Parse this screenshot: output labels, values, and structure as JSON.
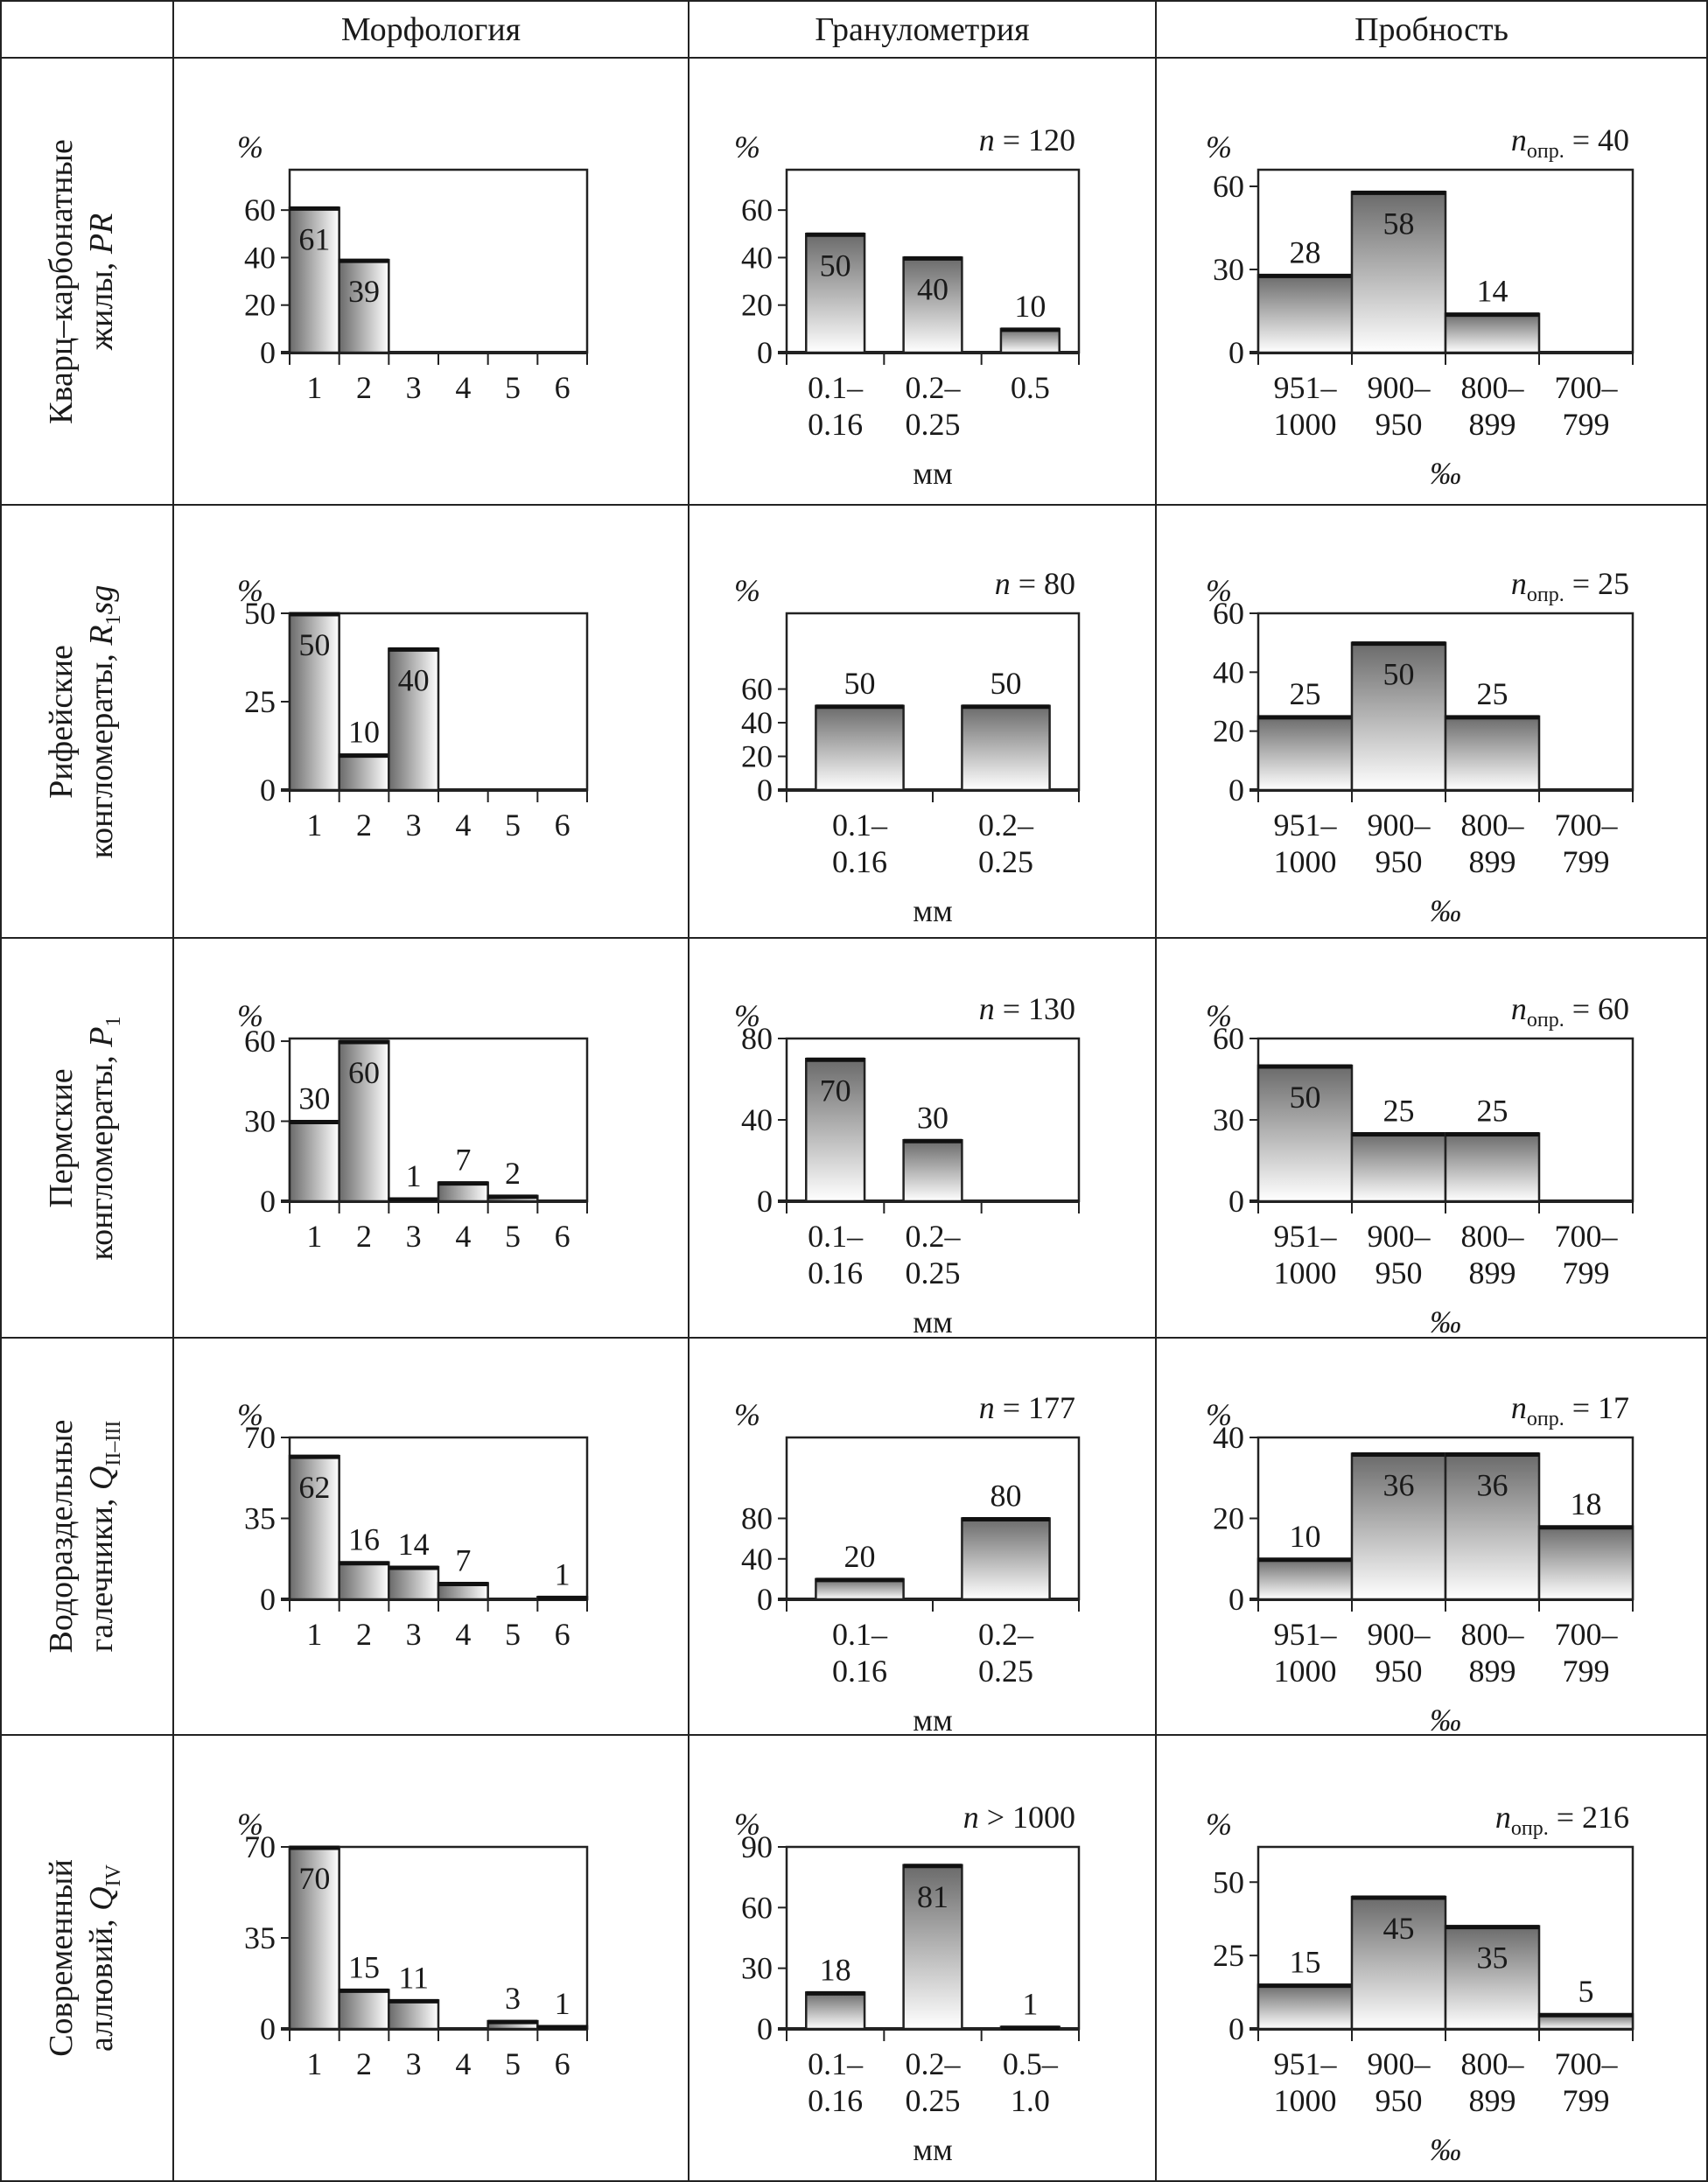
{
  "headers": [
    "Морфология",
    "Гранулометрия",
    "Пробность"
  ],
  "rows": [
    {
      "line1": "Кварц–карбонатные",
      "line2": "жилы, ",
      "symbol": "PR",
      "sub": ""
    },
    {
      "line1": "Рифейские",
      "line2": "конгломераты, ",
      "symbol": "R",
      "sub": "1",
      "suffix": "sg"
    },
    {
      "line1": "Пермские",
      "line2": "конгломераты, ",
      "symbol": "P",
      "sub": "1"
    },
    {
      "line1": "Водораздельные",
      "line2": "галечники, ",
      "symbol": "Q",
      "sub": "II–III"
    },
    {
      "line1": "Современный",
      "line2": "аллювий, ",
      "symbol": "Q",
      "sub": "IV"
    }
  ],
  "bar_gradient": [
    "#6a6a6a",
    "#ffffff"
  ],
  "chart_data": [
    {
      "type": "bar",
      "row": 0,
      "column": "Морфология",
      "categories": [
        [
          "1"
        ],
        [
          "2"
        ],
        [
          "3"
        ],
        [
          "4"
        ],
        [
          "5"
        ],
        [
          "6"
        ]
      ],
      "values": [
        61,
        39,
        0,
        0,
        0,
        0
      ],
      "labels": [
        "61",
        "39",
        "",
        "",
        "",
        ""
      ],
      "yticks": [
        0,
        20,
        40,
        60
      ],
      "ylim": [
        0,
        77
      ],
      "ylabel": "%",
      "xlabel": "",
      "n_symbol": "",
      "n_sub": "",
      "n_text": ""
    },
    {
      "type": "bar",
      "row": 0,
      "column": "Гранулометрия",
      "categories": [
        [
          "0.1–",
          "0.16"
        ],
        [
          "0.2–",
          "0.25"
        ],
        [
          "0.5"
        ]
      ],
      "values": [
        50,
        40,
        10
      ],
      "labels": [
        "50",
        "40",
        "10"
      ],
      "yticks": [
        0,
        20,
        40,
        60
      ],
      "ylim": [
        0,
        77
      ],
      "ylabel": "%",
      "xlabel": "мм",
      "n_symbol": "n",
      "n_sub": "",
      "n_text": "= 120"
    },
    {
      "type": "bar",
      "row": 0,
      "column": "Пробность",
      "categories": [
        [
          "951–",
          "1000"
        ],
        [
          "900–",
          "950"
        ],
        [
          "800–",
          "899"
        ],
        [
          "700–",
          "799"
        ]
      ],
      "values": [
        28,
        58,
        14,
        0
      ],
      "labels": [
        "28",
        "58",
        "14",
        ""
      ],
      "yticks": [
        0,
        30,
        60
      ],
      "ylim": [
        0,
        66
      ],
      "ylabel": "%",
      "xlabel": "‰",
      "n_symbol": "n",
      "n_sub": "опр.",
      "n_text": "= 40"
    },
    {
      "type": "bar",
      "row": 1,
      "column": "Морфология",
      "categories": [
        [
          "1"
        ],
        [
          "2"
        ],
        [
          "3"
        ],
        [
          "4"
        ],
        [
          "5"
        ],
        [
          "6"
        ]
      ],
      "values": [
        50,
        10,
        40,
        0,
        0,
        0
      ],
      "labels": [
        "50",
        "10",
        "40",
        "",
        "",
        ""
      ],
      "yticks": [
        0,
        25,
        50
      ],
      "ylim": [
        0,
        50
      ],
      "ylabel": "%",
      "xlabel": "",
      "n_symbol": "",
      "n_sub": "",
      "n_text": ""
    },
    {
      "type": "bar",
      "row": 1,
      "column": "Гранулометрия",
      "categories": [
        [
          "0.1–",
          "0.16"
        ],
        [
          "0.2–",
          "0.25"
        ]
      ],
      "values": [
        50,
        50
      ],
      "labels": [
        "50",
        "50"
      ],
      "yticks": [
        0,
        20,
        40,
        60
      ],
      "ylim": [
        0,
        105
      ],
      "ylabel": "%",
      "xlabel": "мм",
      "n_symbol": "n",
      "n_sub": "",
      "n_text": "= 80"
    },
    {
      "type": "bar",
      "row": 1,
      "column": "Пробность",
      "categories": [
        [
          "951–",
          "1000"
        ],
        [
          "900–",
          "950"
        ],
        [
          "800–",
          "899"
        ],
        [
          "700–",
          "799"
        ]
      ],
      "values": [
        25,
        50,
        25,
        0
      ],
      "labels": [
        "25",
        "50",
        "25",
        ""
      ],
      "yticks": [
        0,
        20,
        40,
        60
      ],
      "ylim": [
        0,
        60
      ],
      "ylabel": "%",
      "xlabel": "‰",
      "n_symbol": "n",
      "n_sub": "опр.",
      "n_text": "= 25"
    },
    {
      "type": "bar",
      "row": 2,
      "column": "Морфология",
      "categories": [
        [
          "1"
        ],
        [
          "2"
        ],
        [
          "3"
        ],
        [
          "4"
        ],
        [
          "5"
        ],
        [
          "6"
        ]
      ],
      "values": [
        30,
        60,
        1,
        7,
        2,
        0
      ],
      "labels": [
        "30",
        "60",
        "1",
        "7",
        "2",
        ""
      ],
      "yticks": [
        0,
        30,
        60
      ],
      "ylim": [
        0,
        61
      ],
      "ylabel": "%",
      "xlabel": "",
      "n_symbol": "",
      "n_sub": "",
      "n_text": ""
    },
    {
      "type": "bar",
      "row": 2,
      "column": "Гранулометрия",
      "categories": [
        [
          "0.1–",
          "0.16"
        ],
        [
          "0.2–",
          "0.25"
        ],
        [
          ""
        ]
      ],
      "values": [
        70,
        30,
        0
      ],
      "labels": [
        "70",
        "30",
        ""
      ],
      "yticks": [
        0,
        40,
        80
      ],
      "ylim": [
        0,
        80
      ],
      "ylabel": "%",
      "xlabel": "мм",
      "n_symbol": "n",
      "n_sub": "",
      "n_text": "= 130"
    },
    {
      "type": "bar",
      "row": 2,
      "column": "Пробность",
      "categories": [
        [
          "951–",
          "1000"
        ],
        [
          "900–",
          "950"
        ],
        [
          "800–",
          "899"
        ],
        [
          "700–",
          "799"
        ]
      ],
      "values": [
        50,
        25,
        25,
        0
      ],
      "labels": [
        "50",
        "25",
        "25",
        ""
      ],
      "yticks": [
        0,
        30,
        60
      ],
      "ylim": [
        0,
        60
      ],
      "ylabel": "%",
      "xlabel": "‰",
      "n_symbol": "n",
      "n_sub": "опр.",
      "n_text": "= 60"
    },
    {
      "type": "bar",
      "row": 3,
      "column": "Морфология",
      "categories": [
        [
          "1"
        ],
        [
          "2"
        ],
        [
          "3"
        ],
        [
          "4"
        ],
        [
          "5"
        ],
        [
          "6"
        ]
      ],
      "values": [
        62,
        16,
        14,
        7,
        0,
        1
      ],
      "labels": [
        "62",
        "16",
        "14",
        "7",
        "",
        "1"
      ],
      "yticks": [
        0,
        35,
        70
      ],
      "ylim": [
        0,
        70
      ],
      "ylabel": "%",
      "xlabel": "",
      "n_symbol": "",
      "n_sub": "",
      "n_text": ""
    },
    {
      "type": "bar",
      "row": 3,
      "column": "Гранулометрия",
      "categories": [
        [
          "0.1–",
          "0.16"
        ],
        [
          "0.2–",
          "0.25"
        ]
      ],
      "values": [
        20,
        80
      ],
      "labels": [
        "20",
        "80"
      ],
      "yticks": [
        0,
        40,
        80
      ],
      "ylim": [
        0,
        160
      ],
      "ylabel": "%",
      "xlabel": "мм",
      "n_symbol": "n",
      "n_sub": "",
      "n_text": "= 177"
    },
    {
      "type": "bar",
      "row": 3,
      "column": "Пробность",
      "categories": [
        [
          "951–",
          "1000"
        ],
        [
          "900–",
          "950"
        ],
        [
          "800–",
          "899"
        ],
        [
          "700–",
          "799"
        ]
      ],
      "values": [
        10,
        36,
        36,
        18
      ],
      "labels": [
        "10",
        "36",
        "36",
        "18"
      ],
      "yticks": [
        0,
        20,
        40
      ],
      "ylim": [
        0,
        40
      ],
      "ylabel": "%",
      "xlabel": "‰",
      "n_symbol": "n",
      "n_sub": "опр.",
      "n_text": "= 17"
    },
    {
      "type": "bar",
      "row": 4,
      "column": "Морфология",
      "categories": [
        [
          "1"
        ],
        [
          "2"
        ],
        [
          "3"
        ],
        [
          "4"
        ],
        [
          "5"
        ],
        [
          "6"
        ]
      ],
      "values": [
        70,
        15,
        11,
        0,
        3,
        1
      ],
      "labels": [
        "70",
        "15",
        "11",
        "",
        "3",
        "1"
      ],
      "yticks": [
        0,
        35,
        70
      ],
      "ylim": [
        0,
        70
      ],
      "ylabel": "%",
      "xlabel": "",
      "n_symbol": "",
      "n_sub": "",
      "n_text": ""
    },
    {
      "type": "bar",
      "row": 4,
      "column": "Гранулометрия",
      "categories": [
        [
          "0.1–",
          "0.16"
        ],
        [
          "0.2–",
          "0.25"
        ],
        [
          "0.5–",
          "1.0"
        ]
      ],
      "values": [
        18,
        81,
        1
      ],
      "labels": [
        "18",
        "81",
        "1"
      ],
      "yticks": [
        0,
        30,
        60,
        90
      ],
      "ylim": [
        0,
        90
      ],
      "ylabel": "%",
      "xlabel": "мм",
      "n_symbol": "n",
      "n_sub": "",
      "n_text": "> 1000"
    },
    {
      "type": "bar",
      "row": 4,
      "column": "Пробность",
      "categories": [
        [
          "951–",
          "1000"
        ],
        [
          "900–",
          "950"
        ],
        [
          "800–",
          "899"
        ],
        [
          "700–",
          "799"
        ]
      ],
      "values": [
        15,
        45,
        35,
        5
      ],
      "labels": [
        "15",
        "45",
        "35",
        "5"
      ],
      "yticks": [
        0,
        25,
        50
      ],
      "ylim": [
        0,
        62
      ],
      "ylabel": "%",
      "xlabel": "‰",
      "n_symbol": "n",
      "n_sub": "опр.",
      "n_text": "= 216"
    }
  ]
}
